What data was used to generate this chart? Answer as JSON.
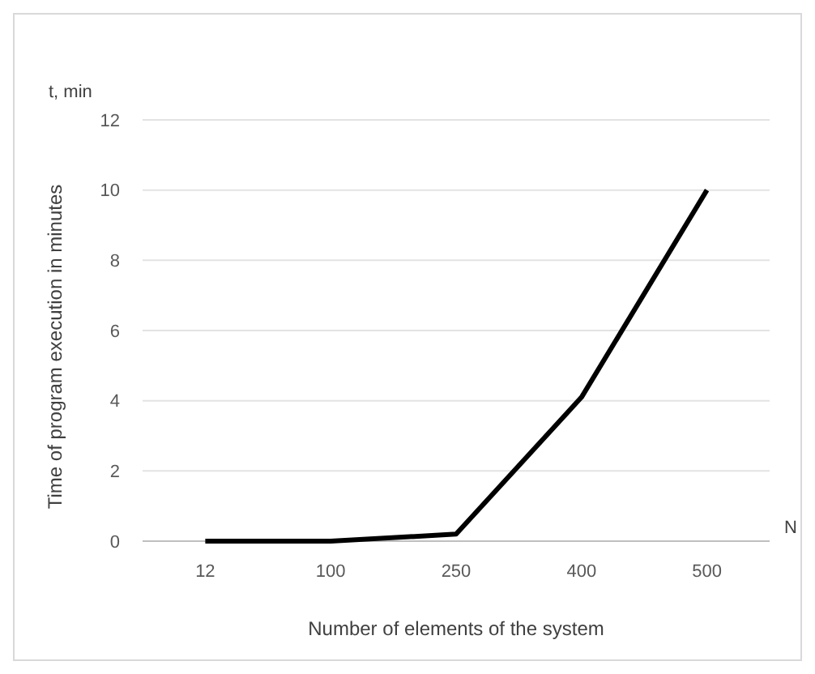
{
  "chart_data": {
    "type": "line",
    "xlabel": "Number of elements of the system",
    "ylabel": "Time of program execution in minutes",
    "annotations": [
      "t, min",
      "N"
    ],
    "categories": [
      "12",
      "100",
      "250",
      "400",
      "500"
    ],
    "series": [
      {
        "color": "#000000",
        "values": [
          0,
          0,
          0.2,
          4.1,
          10
        ]
      }
    ],
    "ylim": [
      0,
      12
    ],
    "yticks": [
      0,
      2,
      4,
      6,
      8,
      10,
      12
    ],
    "grid": "y",
    "marker": "none",
    "line_style": "solid"
  }
}
